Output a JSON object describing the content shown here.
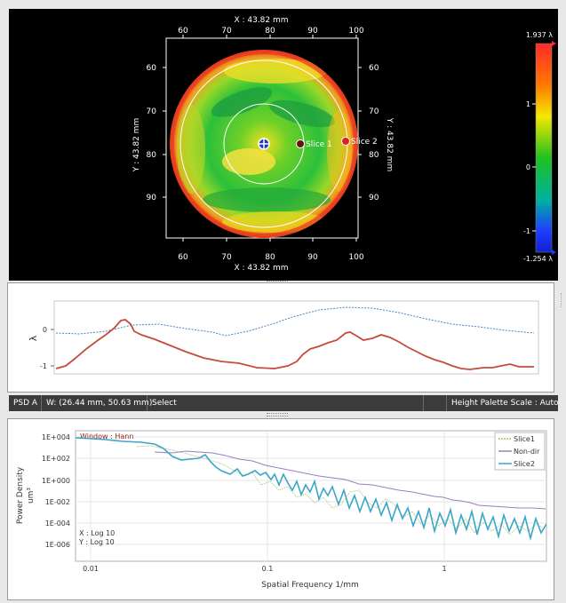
{
  "map": {
    "x_axis_title": "X : 43.82 mm",
    "y_axis_title": "Y : 43.82 mm",
    "x_ticks": [
      "60",
      "70",
      "80",
      "90",
      "100"
    ],
    "y_ticks": [
      "60",
      "70",
      "80",
      "90"
    ],
    "slice1_label": "Slice 1",
    "slice2_label": "Slice 2",
    "colorbar": {
      "max_label": "1.937 λ",
      "min_label": "-1.254 λ",
      "ticks": [
        "1",
        "0",
        "-1"
      ]
    }
  },
  "profile": {
    "ylabel": "λ",
    "y_ticks": [
      "0",
      "-1"
    ]
  },
  "status": {
    "mode": "PSD A",
    "window": "W: (26.44 mm, 50.63 mm)",
    "tool": "Select",
    "palette": "Height Palette Scale : Auto"
  },
  "psd": {
    "window_label": "Window : Hann",
    "ylabel_line1": "Power Density",
    "ylabel_line2": "um³",
    "xlabel": "Spatial Frequency 1/mm",
    "x_scale_note": "X : Log 10",
    "y_scale_note": "Y : Log 10",
    "y_ticks": [
      "1E+004",
      "1E+002",
      "1E+000",
      "1E-002",
      "1E-004",
      "1E-006"
    ],
    "x_ticks": [
      "0.01",
      "0.1",
      "1"
    ],
    "legend": [
      {
        "name": "Slice1",
        "color": "#a8c46a"
      },
      {
        "name": "Non-dir",
        "color": "#9a7fbf"
      },
      {
        "name": "Slice2",
        "color": "#3aa6c8"
      }
    ]
  },
  "colors": {
    "profile_slice1": "#c64b3c",
    "profile_slice2": "#4a82c8",
    "slice1_marker": "#6b1010",
    "slice2_marker": "#e02020"
  }
}
